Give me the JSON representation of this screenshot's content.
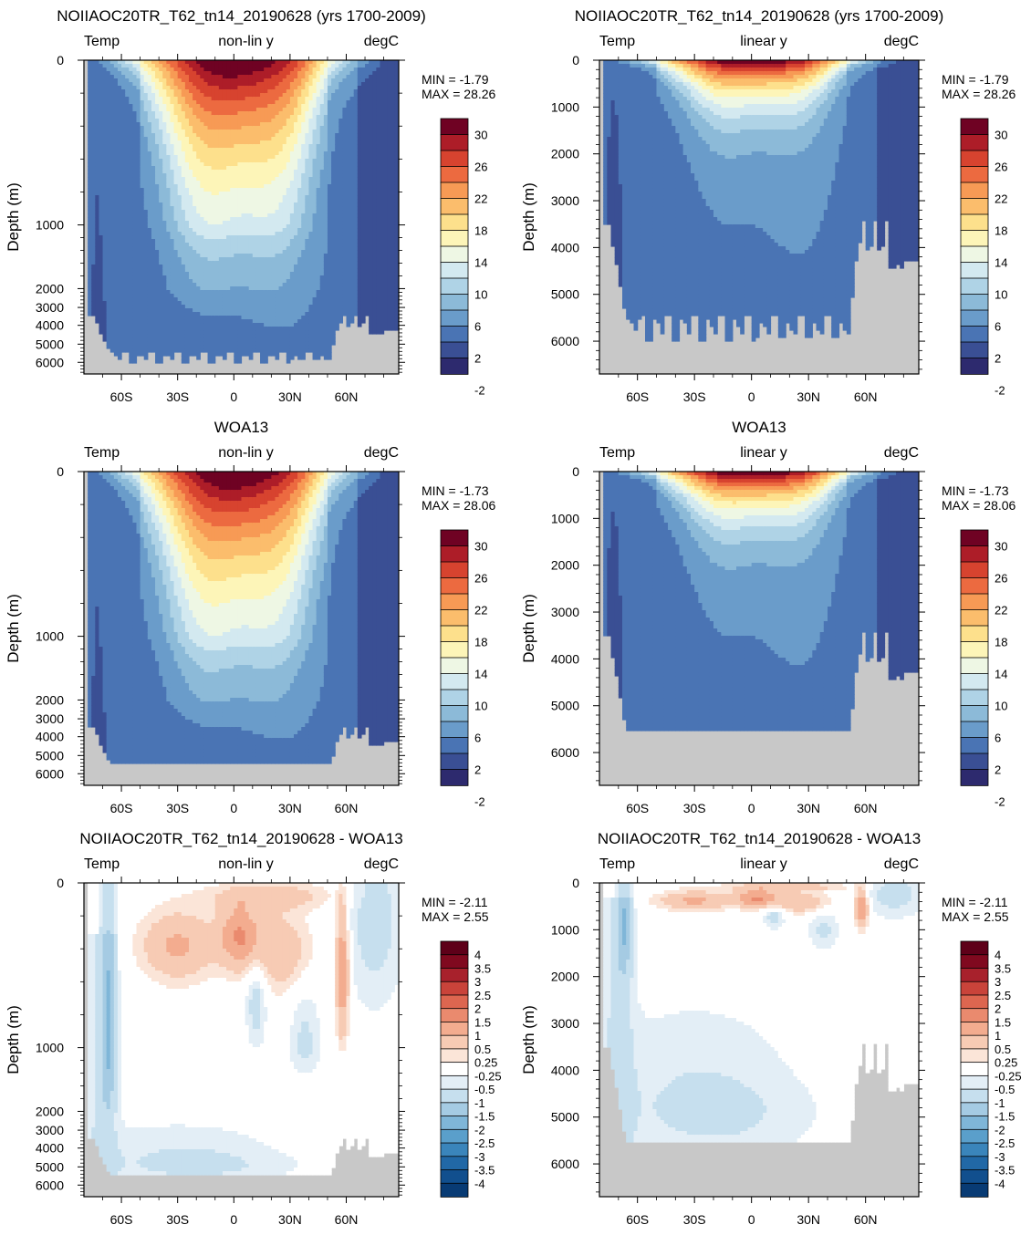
{
  "chart_data": [
    {
      "type": "heatmap",
      "panel": "model-nonlin",
      "title": "NOIIAOC20TR_T62_tn14_20190628 (yrs 1700-2009)",
      "left_label": "Temp",
      "center_label": "non-lin y",
      "right_label": "degC",
      "ylabel": "Depth (m)",
      "y_scale": "non-linear",
      "y_ticks": [
        "0",
        "1000",
        "2000",
        "3000",
        "4000",
        "5000",
        "6000"
      ],
      "x_ticks": [
        "60S",
        "30S",
        "0",
        "30N",
        "60N"
      ],
      "xlim": [
        -80,
        88
      ],
      "ylim": [
        6700,
        0
      ],
      "min_label": "MIN =  -1.79",
      "max_label": "MAX =  28.26",
      "colorbar_labels": [
        "30",
        "26",
        "22",
        "18",
        "14",
        "10",
        "6",
        "2",
        "-2"
      ],
      "palette": "temp"
    },
    {
      "type": "heatmap",
      "panel": "model-linear",
      "title": "NOIIAOC20TR_T62_tn14_20190628 (yrs 1700-2009)",
      "left_label": "Temp",
      "center_label": "linear y",
      "right_label": "degC",
      "ylabel": "Depth (m)",
      "y_scale": "linear",
      "y_ticks": [
        "0",
        "1000",
        "2000",
        "3000",
        "4000",
        "5000",
        "6000"
      ],
      "x_ticks": [
        "60S",
        "30S",
        "0",
        "30N",
        "60N"
      ],
      "xlim": [
        -80,
        88
      ],
      "ylim": [
        6700,
        0
      ],
      "min_label": "MIN =  -1.79",
      "max_label": "MAX =  28.26",
      "colorbar_labels": [
        "30",
        "26",
        "22",
        "18",
        "14",
        "10",
        "6",
        "2",
        "-2"
      ],
      "palette": "temp"
    },
    {
      "type": "heatmap",
      "panel": "obs-nonlin",
      "title": "WOA13",
      "left_label": "Temp",
      "center_label": "non-lin y",
      "right_label": "degC",
      "ylabel": "Depth (m)",
      "y_scale": "non-linear",
      "y_ticks": [
        "0",
        "1000",
        "2000",
        "3000",
        "4000",
        "5000",
        "6000"
      ],
      "x_ticks": [
        "60S",
        "30S",
        "0",
        "30N",
        "60N"
      ],
      "xlim": [
        -80,
        88
      ],
      "ylim": [
        6700,
        0
      ],
      "min_label": "MIN =  -1.73",
      "max_label": "MAX =  28.06",
      "colorbar_labels": [
        "30",
        "26",
        "22",
        "18",
        "14",
        "10",
        "6",
        "2",
        "-2"
      ],
      "palette": "temp"
    },
    {
      "type": "heatmap",
      "panel": "obs-linear",
      "title": "WOA13",
      "left_label": "Temp",
      "center_label": "linear y",
      "right_label": "degC",
      "ylabel": "Depth (m)",
      "y_scale": "linear",
      "y_ticks": [
        "0",
        "1000",
        "2000",
        "3000",
        "4000",
        "5000",
        "6000"
      ],
      "x_ticks": [
        "60S",
        "30S",
        "0",
        "30N",
        "60N"
      ],
      "xlim": [
        -80,
        88
      ],
      "ylim": [
        6700,
        0
      ],
      "min_label": "MIN =  -1.73",
      "max_label": "MAX =  28.06",
      "colorbar_labels": [
        "30",
        "26",
        "22",
        "18",
        "14",
        "10",
        "6",
        "2",
        "-2"
      ],
      "palette": "temp"
    },
    {
      "type": "heatmap",
      "panel": "diff-nonlin",
      "title": "NOIIAOC20TR_T62_tn14_20190628 - WOA13",
      "left_label": "Temp",
      "center_label": "non-lin y",
      "right_label": "degC",
      "ylabel": "Depth (m)",
      "y_scale": "non-linear",
      "y_ticks": [
        "0",
        "1000",
        "2000",
        "3000",
        "4000",
        "5000",
        "6000"
      ],
      "x_ticks": [
        "60S",
        "30S",
        "0",
        "30N",
        "60N"
      ],
      "xlim": [
        -80,
        88
      ],
      "ylim": [
        6700,
        0
      ],
      "min_label": "MIN =  -2.11",
      "max_label": "MAX =   2.55",
      "colorbar_labels": [
        "4",
        "3.5",
        "3",
        "2.5",
        "2",
        "1.5",
        "1",
        "0.5",
        "0.25",
        "-0.25",
        "-0.5",
        "-1",
        "-1.5",
        "-2",
        "-2.5",
        "-3",
        "-3.5",
        "-4"
      ],
      "palette": "diff"
    },
    {
      "type": "heatmap",
      "panel": "diff-linear",
      "title": "NOIIAOC20TR_T62_tn14_20190628 - WOA13",
      "left_label": "Temp",
      "center_label": "linear y",
      "right_label": "degC",
      "ylabel": "Depth (m)",
      "y_scale": "linear",
      "y_ticks": [
        "0",
        "1000",
        "2000",
        "3000",
        "4000",
        "5000",
        "6000"
      ],
      "x_ticks": [
        "60S",
        "30S",
        "0",
        "30N",
        "60N"
      ],
      "xlim": [
        -80,
        88
      ],
      "ylim": [
        6700,
        0
      ],
      "min_label": "MIN =  -2.11",
      "max_label": "MAX =   2.55",
      "colorbar_labels": [
        "4",
        "3.5",
        "3",
        "2.5",
        "2",
        "1.5",
        "1",
        "0.5",
        "0.25",
        "-0.25",
        "-0.5",
        "-1",
        "-1.5",
        "-2",
        "-2.5",
        "-3",
        "-3.5",
        "-4"
      ],
      "palette": "diff"
    }
  ],
  "colors": {
    "temp": [
      "#2d2a6e",
      "#3a4f94",
      "#4a74b4",
      "#6a9cca",
      "#8cbad8",
      "#afd3e6",
      "#d3e9f0",
      "#eef7e4",
      "#fdf5b8",
      "#fde08c",
      "#fbbd6c",
      "#f79a55",
      "#ec6a40",
      "#d7432f",
      "#ad1d28",
      "#6f0223"
    ],
    "diff": [
      "#083b74",
      "#114f8e",
      "#2168a6",
      "#3a85bb",
      "#5a9fcb",
      "#7fb6d8",
      "#a5cbe3",
      "#c6dfee",
      "#e3eef6",
      "#ffffff",
      "#fbe5d8",
      "#f7cbb4",
      "#f3ac8f",
      "#ea8a6e",
      "#dd6650",
      "#c9433a",
      "#a8212c",
      "#80091f",
      "#5e0019"
    ],
    "land": "#c8c8c8"
  }
}
